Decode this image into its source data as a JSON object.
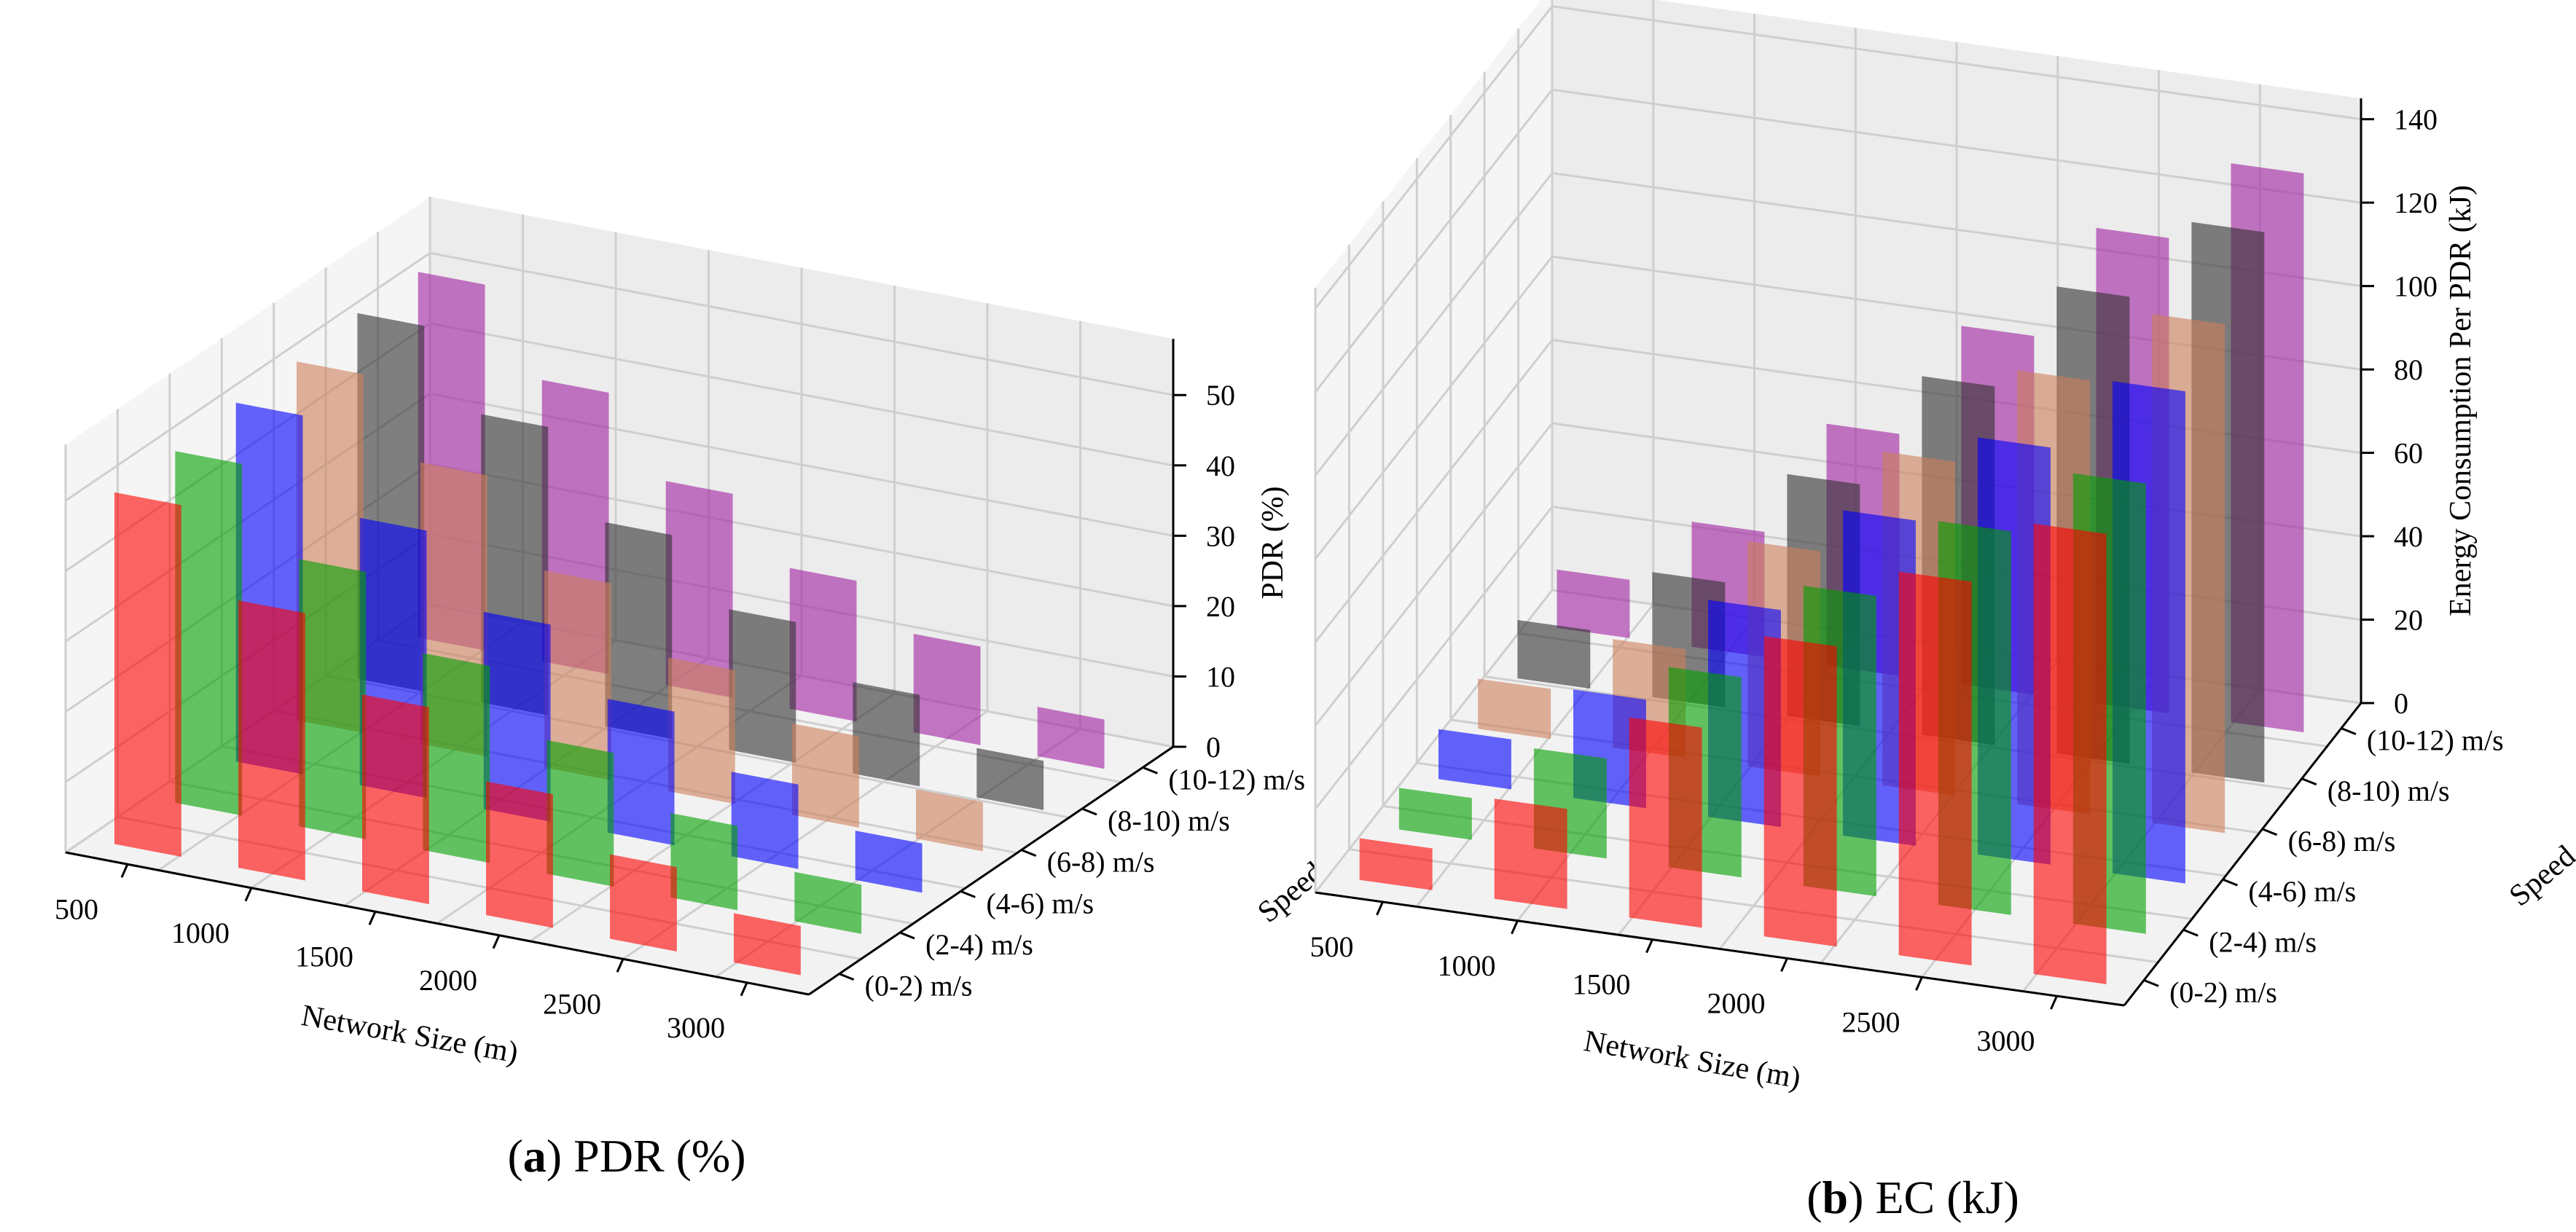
{
  "chart_data": [
    {
      "type": "bar3d",
      "panel": "a",
      "caption_letter": "a",
      "caption_text": "PDR (%)",
      "xlabel": "Network Size (m)",
      "ylabel": "Speed",
      "zlabel": "PDR (%)",
      "categories": [
        "500",
        "1000",
        "1500",
        "2000",
        "2500",
        "3000"
      ],
      "depth_categories": [
        "(0-2) m/s",
        "(2-4) m/s",
        "(4-6) m/s",
        "(6-8) m/s",
        "(8-10) m/s",
        "(10-12) m/s"
      ],
      "zticks": [
        0,
        10,
        20,
        30,
        40,
        50
      ],
      "zlim": [
        0,
        58
      ],
      "series": [
        {
          "name": "(0-2) m/s",
          "color": "#ff0000",
          "values": [
            50,
            38,
            28,
            19,
            12,
            7
          ]
        },
        {
          "name": "(2-4) m/s",
          "color": "#00a000",
          "values": [
            50,
            38,
            28,
            19,
            12,
            7
          ]
        },
        {
          "name": "(4-6) m/s",
          "color": "#0000ff",
          "values": [
            51,
            38,
            28,
            19,
            12,
            7
          ]
        },
        {
          "name": "(6-8) m/s",
          "color": "#cd7f5a",
          "values": [
            51,
            40,
            28,
            19,
            13,
            7
          ]
        },
        {
          "name": "(8-10) m/s",
          "color": "#303030",
          "values": [
            52,
            41,
            29,
            20,
            13,
            7
          ]
        },
        {
          "name": "(10-12) m/s",
          "color": "#a020a0",
          "values": [
            52,
            40,
            29,
            20,
            14,
            7
          ]
        }
      ]
    },
    {
      "type": "bar3d",
      "panel": "b",
      "caption_letter": "b",
      "caption_text": "EC (kJ)",
      "xlabel": "Network Size (m)",
      "ylabel": "Speed",
      "zlabel": "Energy Consumption Per PDR (kJ)",
      "categories": [
        "500",
        "1000",
        "1500",
        "2000",
        "2500",
        "3000"
      ],
      "depth_categories": [
        "(0-2) m/s",
        "(2-4) m/s",
        "(4-6) m/s",
        "(6-8) m/s",
        "(8-10) m/s",
        "(10-12) m/s"
      ],
      "zticks": [
        0,
        20,
        40,
        60,
        80,
        100,
        120,
        140
      ],
      "zlim": [
        0,
        145
      ],
      "series": [
        {
          "name": "(0-2) m/s",
          "color": "#ff0000",
          "values": [
            10,
            24,
            48,
            72,
            92,
            108
          ]
        },
        {
          "name": "(2-4) m/s",
          "color": "#00a000",
          "values": [
            10,
            24,
            48,
            72,
            92,
            108
          ]
        },
        {
          "name": "(4-6) m/s",
          "color": "#0000ff",
          "values": [
            12,
            26,
            52,
            78,
            100,
            118
          ]
        },
        {
          "name": "(6-8) m/s",
          "color": "#cd7f5a",
          "values": [
            12,
            26,
            54,
            80,
            104,
            122
          ]
        },
        {
          "name": "(8-10) m/s",
          "color": "#303030",
          "values": [
            14,
            30,
            58,
            86,
            112,
            132
          ]
        },
        {
          "name": "(10-12) m/s",
          "color": "#a020a0",
          "values": [
            14,
            30,
            58,
            86,
            114,
            134
          ]
        }
      ]
    }
  ]
}
